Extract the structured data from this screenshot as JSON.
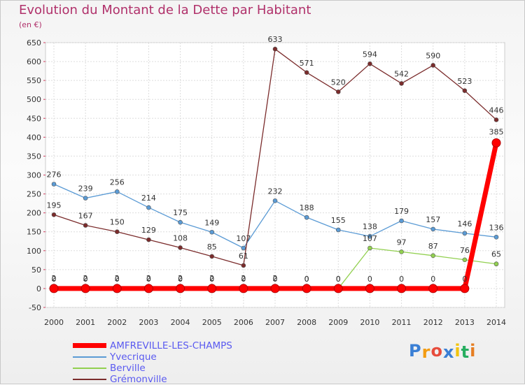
{
  "chart_data": {
    "type": "line",
    "title": "Evolution du Montant de la Dette par Habitant",
    "subtitle": "(en €)",
    "x": [
      "2000",
      "2001",
      "2002",
      "2003",
      "2004",
      "2005",
      "2006",
      "2007",
      "2008",
      "2009",
      "2010",
      "2011",
      "2012",
      "2013",
      "2014"
    ],
    "ylim": [
      -50,
      650
    ],
    "yticks": [
      -50,
      0,
      50,
      100,
      150,
      200,
      250,
      300,
      350,
      400,
      450,
      500,
      550,
      600,
      650
    ],
    "grid": true,
    "legend_position": "bottom-left",
    "series": [
      {
        "name": "AMFREVILLE-LES-CHAMPS",
        "color": "#ff0000",
        "values": [
          0,
          0,
          0,
          0,
          0,
          0,
          0,
          0,
          0,
          0,
          0,
          0,
          0,
          0,
          385
        ],
        "labels": [
          "0",
          "0",
          "0",
          "0",
          "0",
          "0",
          "0",
          "0",
          "0",
          "0",
          "0",
          "0",
          "0",
          "0",
          "385"
        ]
      },
      {
        "name": "Yvecrique",
        "color": "#5b9bd5",
        "values": [
          276,
          239,
          256,
          214,
          175,
          149,
          107,
          232,
          188,
          155,
          138,
          179,
          157,
          146,
          136
        ],
        "labels": [
          "276",
          "239",
          "256",
          "214",
          "175",
          "149",
          "107",
          "232",
          "188",
          "155",
          "138",
          "179",
          "157",
          "146",
          "136"
        ]
      },
      {
        "name": "Berville",
        "color": "#92d050",
        "values": [
          2,
          2,
          2,
          2,
          2,
          2,
          2,
          2,
          0,
          0,
          107,
          97,
          87,
          76,
          65
        ],
        "labels": [
          "2",
          "2",
          "2",
          "2",
          "2",
          "2",
          "2",
          "2",
          "0",
          "0",
          "107",
          "97",
          "87",
          "76",
          "65"
        ]
      },
      {
        "name": "Grémonville",
        "color": "#7b2c2c",
        "values": [
          195,
          167,
          150,
          129,
          108,
          85,
          61,
          633,
          571,
          520,
          594,
          542,
          590,
          523,
          446
        ],
        "labels": [
          "195",
          "167",
          "150",
          "129",
          "108",
          "85",
          "61",
          "633",
          "571",
          "520",
          "594",
          "542",
          "590",
          "523",
          "446"
        ]
      }
    ]
  },
  "brand": {
    "letters": [
      "P",
      "r",
      "o",
      "x",
      "i",
      "t",
      "i"
    ],
    "colors": [
      "#3a7fd5",
      "#f39c12",
      "#e74c3c",
      "#3a7fd5",
      "#f1c40f",
      "#27ae60",
      "#e67e22"
    ]
  }
}
